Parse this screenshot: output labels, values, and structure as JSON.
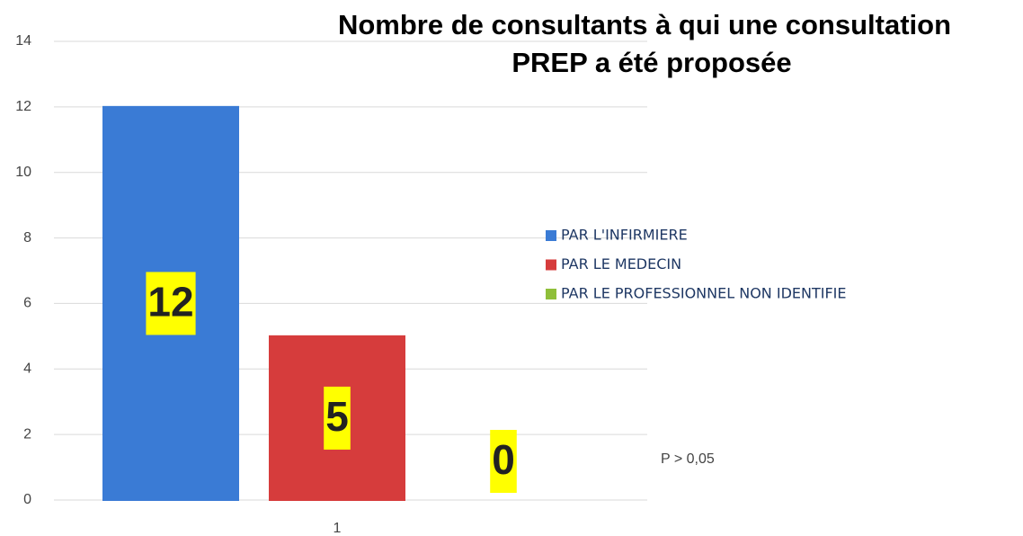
{
  "chart_data": {
    "type": "bar",
    "title": "Nombre de consultants à qui une consultation PREP a été proposée",
    "categories": [
      "1"
    ],
    "series": [
      {
        "name": "PAR L'INFIRMIERE",
        "color": "#3a7bd5",
        "values": [
          12
        ]
      },
      {
        "name": "PAR LE MEDECIN",
        "color": "#d63c3c",
        "values": [
          5
        ]
      },
      {
        "name": "PAR LE PROFESSIONNEL NON IDENTIFIE",
        "color": "#8fbf3a",
        "values": [
          0
        ]
      }
    ],
    "ylim": [
      0,
      14
    ],
    "yticks": [
      0,
      2,
      4,
      6,
      8,
      10,
      12,
      14
    ],
    "grid": true,
    "legend": "right",
    "annotation": "P > 0,05"
  }
}
